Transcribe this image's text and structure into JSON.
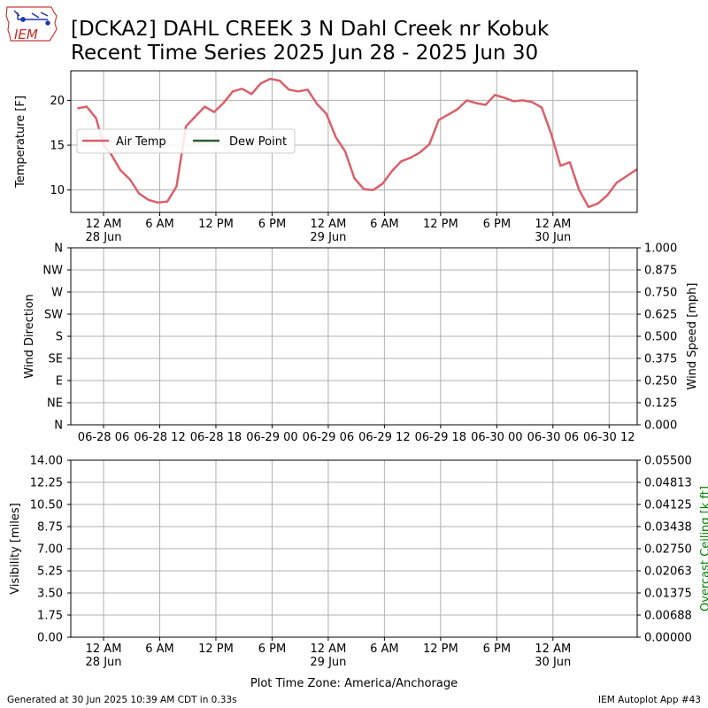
{
  "header": {
    "logo_text": "IEM",
    "title_line1": "[DCKA2] DAHL CREEK 3 N Dahl Creek nr Kobuk",
    "title_line2": "Recent Time Series 2025 Jun 28 - 2025 Jun 30"
  },
  "footer": {
    "generated": "Generated at 30 Jun 2025 10:39 AM CDT in 0.33s",
    "app": "IEM Autoplot App #43"
  },
  "colors": {
    "air_temp": "#d9606a",
    "dew_point": "#2e5e2e",
    "ceiling_label": "#008000",
    "grid": "#b0b0b0"
  },
  "chart_data": [
    {
      "type": "line",
      "ylabel": "Temperature [F]",
      "ylim": [
        7.5,
        23.3
      ],
      "xlim": [
        -3.5,
        57.0
      ],
      "x_unit": "hours since 2025-06-28 00:00 (America/Anchorage)",
      "y_ticks": [
        10,
        15,
        20
      ],
      "x_tick_positions": [
        0,
        6,
        12,
        18,
        24,
        30,
        36,
        42,
        48
      ],
      "x_tick_labels": [
        [
          "12 AM",
          "28 Jun"
        ],
        [
          "6 AM",
          ""
        ],
        [
          "12 PM",
          ""
        ],
        [
          "6 PM",
          ""
        ],
        [
          "12 AM",
          "29 Jun"
        ],
        [
          "6 AM",
          ""
        ],
        [
          "12 PM",
          ""
        ],
        [
          "6 PM",
          ""
        ],
        [
          "12 AM",
          "30 Jun"
        ]
      ],
      "grid": true,
      "legend_position": "center-left",
      "legend": [
        "Air Temp",
        "Dew Point"
      ],
      "series": [
        {
          "name": "Air Temp",
          "x": [
            -2.8,
            -1.8,
            -0.8,
            0,
            0.8,
            1.8,
            2.8,
            3.8,
            4.8,
            5.8,
            6.8,
            7.8,
            8.8,
            9.8,
            10.8,
            11.8,
            12.8,
            13.8,
            14.8,
            15.8,
            16.8,
            17.8,
            18.8,
            19.8,
            20.8,
            21.8,
            22.8,
            23.8,
            24.8,
            25.8,
            26.8,
            27.8,
            28.8,
            29.8,
            30.8,
            31.8,
            32.8,
            33.8,
            34.8,
            35.8,
            36.8,
            37.8,
            38.8,
            39.8,
            40.8,
            41.8,
            42.8,
            43.8,
            44.8,
            45.8,
            46.8,
            47.8,
            48.8,
            49.8,
            50.8,
            51.8,
            52.8,
            53.8,
            54.8,
            55.8,
            56.8,
            57.0
          ],
          "values": [
            19.1,
            19.3,
            18.0,
            15.0,
            14.0,
            12.2,
            11.2,
            9.6,
            8.9,
            8.6,
            8.7,
            10.4,
            17.1,
            18.2,
            19.3,
            18.7,
            19.7,
            21.0,
            21.3,
            20.7,
            21.9,
            22.4,
            22.2,
            21.2,
            21.0,
            21.2,
            19.6,
            18.5,
            15.9,
            14.3,
            11.3,
            10.1,
            10.0,
            10.7,
            12.1,
            13.2,
            13.6,
            14.2,
            15.1,
            17.8,
            18.4,
            19.0,
            20.0,
            19.7,
            19.5,
            20.6,
            20.3,
            19.9,
            20.0,
            19.8,
            19.2,
            16.3,
            12.7,
            13.1,
            10.0,
            8.1,
            8.5,
            9.4,
            10.8,
            11.5,
            12.2,
            12.3
          ]
        },
        {
          "name": "Dew Point",
          "x": [],
          "values": []
        }
      ]
    },
    {
      "type": "line",
      "ylabel": "Wind Direction",
      "ylabel_right": "Wind Speed [mph]",
      "ylim": [
        0,
        360
      ],
      "ylim_right": [
        0,
        1
      ],
      "xlim": [
        -3.5,
        57.0
      ],
      "y_tick_labels": [
        "N",
        "NE",
        "E",
        "SE",
        "S",
        "SW",
        "W",
        "NW",
        "N"
      ],
      "y_tick_labels_right": [
        "0.000",
        "0.125",
        "0.250",
        "0.375",
        "0.500",
        "0.625",
        "0.750",
        "0.875",
        "1.000"
      ],
      "x_tick_positions": [
        0,
        6,
        12,
        18,
        24,
        30,
        36,
        42,
        48,
        54
      ],
      "x_tick_labels": [
        "06-28 06",
        "06-28 12",
        "06-28 18",
        "06-29 00",
        "06-29 06",
        "06-29 12",
        "06-29 18",
        "06-30 00",
        "06-30 06",
        "06-30 12"
      ],
      "grid": true,
      "series": []
    },
    {
      "type": "line",
      "ylabel": "Visibility [miles]",
      "ylabel_right": "Overcast Ceiling [k ft]",
      "ylim": [
        0,
        14
      ],
      "ylim_right": [
        0,
        0.055
      ],
      "xlim": [
        -3.5,
        57.0
      ],
      "y_tick_labels": [
        "0.00",
        "1.75",
        "3.50",
        "5.25",
        "7.00",
        "8.75",
        "10.50",
        "12.25",
        "14.00"
      ],
      "y_tick_labels_right": [
        "0.00000",
        "0.00688",
        "0.01375",
        "0.02063",
        "0.02750",
        "0.03438",
        "0.04125",
        "0.04813",
        "0.05500"
      ],
      "x_tick_positions": [
        0,
        6,
        12,
        18,
        24,
        30,
        36,
        42,
        48
      ],
      "x_tick_labels": [
        [
          "12 AM",
          "28 Jun"
        ],
        [
          "6 AM",
          ""
        ],
        [
          "12 PM",
          ""
        ],
        [
          "6 PM",
          ""
        ],
        [
          "12 AM",
          "29 Jun"
        ],
        [
          "6 AM",
          ""
        ],
        [
          "12 PM",
          ""
        ],
        [
          "6 PM",
          ""
        ],
        [
          "12 AM",
          "30 Jun"
        ]
      ],
      "xlabel": "Plot Time Zone: America/Anchorage",
      "grid": true,
      "series": []
    }
  ]
}
